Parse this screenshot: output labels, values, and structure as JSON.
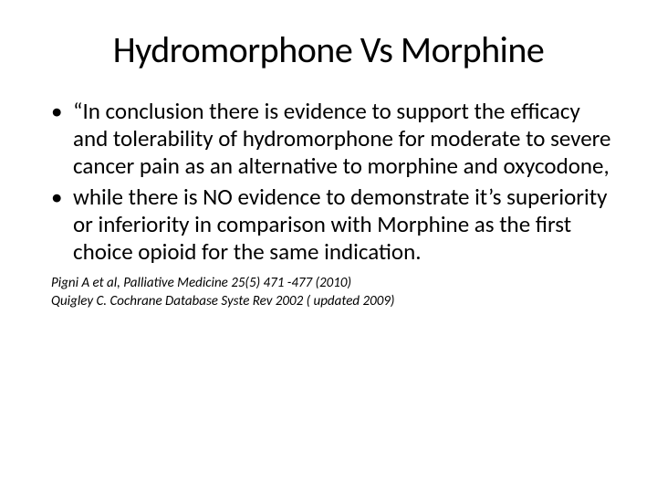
{
  "slide": {
    "title": "Hydromorphone Vs Morphine",
    "bullets": [
      "“In conclusion there is evidence to support the efficacy and tolerability of hydromorphone for moderate to severe cancer pain as an alternative to morphine and oxycodone,",
      "while there is NO evidence to demonstrate it’s superiority or inferiority in comparison with Morphine as the first choice opioid for the same indication."
    ],
    "references": [
      "Pigni A et al, Palliative Medicine 25(5) 471 -477 (2010)",
      "Quigley C. Cochrane Database Syste Rev 2002 ( updated 2009)"
    ],
    "colors": {
      "background": "#ffffff",
      "text": "#000000"
    },
    "typography": {
      "title_fontsize": 40,
      "title_weight": 400,
      "body_fontsize": 25,
      "ref_fontsize": 15,
      "ref_style": "italic",
      "font_family": "Calibri"
    }
  }
}
